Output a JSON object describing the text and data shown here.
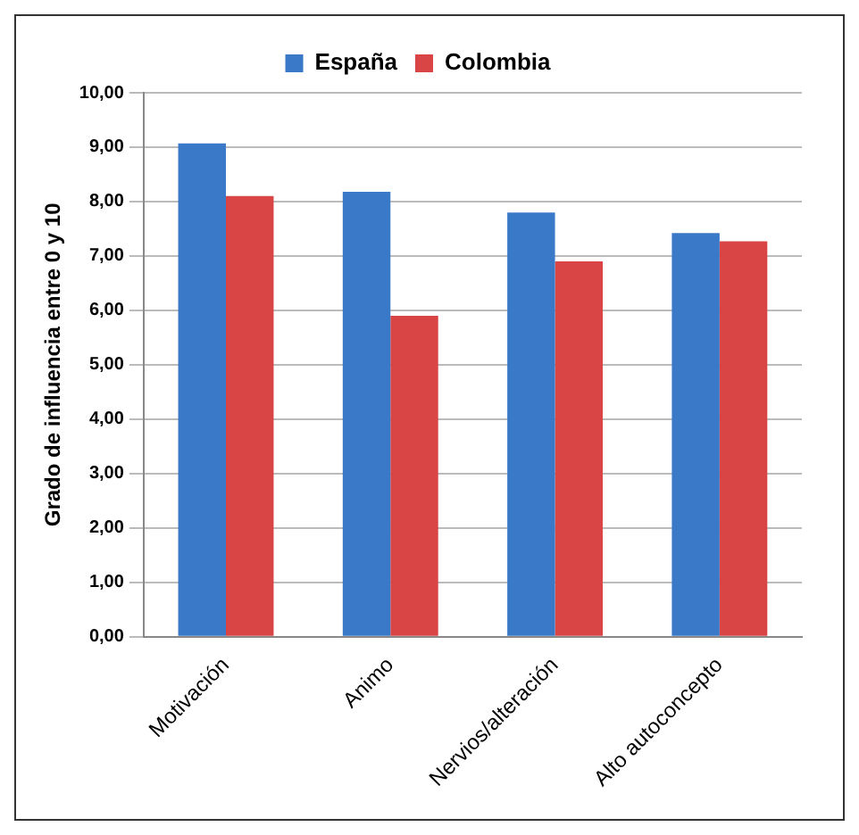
{
  "chart_data": {
    "type": "bar",
    "ylabel": "Grado de influencia entre 0 y 10",
    "categories": [
      "Motivación",
      "Animo",
      "Nervios/alteración",
      "Alto autoconcepto"
    ],
    "series": [
      {
        "name": "España",
        "color": "#3a78c8",
        "values": [
          9.07,
          8.18,
          7.8,
          7.42
        ]
      },
      {
        "name": "Colombia",
        "color": "#d94545",
        "values": [
          8.1,
          5.9,
          6.9,
          7.27
        ]
      }
    ],
    "ylim": [
      0,
      10
    ],
    "yticks": [
      {
        "value": 0,
        "label": "0,00"
      },
      {
        "value": 1,
        "label": "1,00"
      },
      {
        "value": 2,
        "label": "2,00"
      },
      {
        "value": 3,
        "label": "3,00"
      },
      {
        "value": 4,
        "label": "4,00"
      },
      {
        "value": 5,
        "label": "5,00"
      },
      {
        "value": 6,
        "label": "6,00"
      },
      {
        "value": 7,
        "label": "7,00"
      },
      {
        "value": 8,
        "label": "8,00"
      },
      {
        "value": 9,
        "label": "9,00"
      },
      {
        "value": 10,
        "label": "10,00"
      }
    ],
    "grid": "y",
    "legend": "top"
  }
}
